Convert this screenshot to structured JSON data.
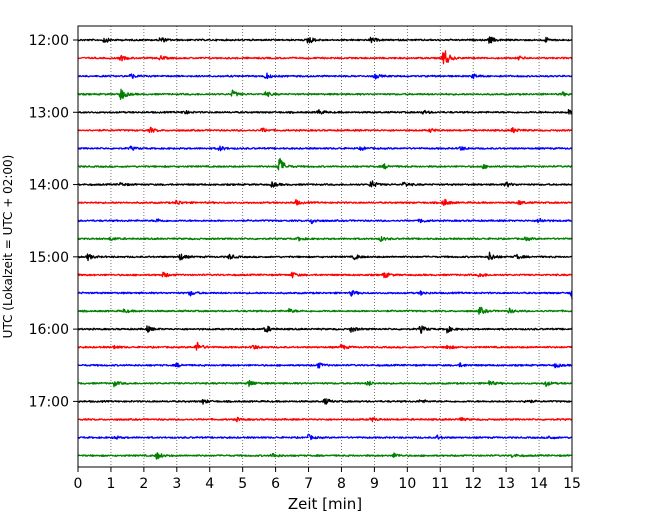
{
  "chart_data": {
    "type": "line",
    "title": "",
    "xlabel": "Zeit  [min]",
    "ylabel": "UTC (Lokalzeit = UTC + 02:00)",
    "xlim": [
      0,
      15
    ],
    "x_ticks": [
      "0",
      "1",
      "2",
      "3",
      "4",
      "5",
      "6",
      "7",
      "8",
      "9",
      "10",
      "11",
      "12",
      "13",
      "14",
      "15"
    ],
    "y_tick_labels": [
      "12:00",
      "13:00",
      "14:00",
      "15:00",
      "16:00",
      "17:00"
    ],
    "trace_interval_minutes": 15,
    "trace_colors": [
      "#000000",
      "#ff0000",
      "#0000ff",
      "#008000"
    ],
    "grid": "vertical dotted at each minute",
    "traces": [
      {
        "start": "12:00",
        "color": "#000000",
        "events": [
          {
            "x": 0.8,
            "a": 0.3
          },
          {
            "x": 2.5,
            "a": 0.35
          },
          {
            "x": 7.0,
            "a": 0.5
          },
          {
            "x": 8.9,
            "a": 0.3
          },
          {
            "x": 12.5,
            "a": 0.4
          },
          {
            "x": 14.2,
            "a": 0.25
          }
        ]
      },
      {
        "start": "12:15",
        "color": "#ff0000",
        "events": [
          {
            "x": 1.3,
            "a": 0.3
          },
          {
            "x": 2.5,
            "a": 0.25
          },
          {
            "x": 11.1,
            "a": 1.3
          },
          {
            "x": 13.4,
            "a": 0.2
          }
        ]
      },
      {
        "start": "12:30",
        "color": "#0000ff",
        "events": [
          {
            "x": 1.6,
            "a": 0.3
          },
          {
            "x": 5.7,
            "a": 0.35
          },
          {
            "x": 9.0,
            "a": 0.3
          },
          {
            "x": 12.0,
            "a": 0.25
          }
        ]
      },
      {
        "start": "12:45",
        "color": "#008000",
        "events": [
          {
            "x": 1.3,
            "a": 0.7
          },
          {
            "x": 4.7,
            "a": 0.4
          },
          {
            "x": 5.7,
            "a": 0.3
          },
          {
            "x": 14.7,
            "a": 0.2
          }
        ]
      },
      {
        "start": "13:00",
        "color": "#000000",
        "events": [
          {
            "x": 3.2,
            "a": 0.25
          },
          {
            "x": 7.3,
            "a": 0.3
          },
          {
            "x": 10.5,
            "a": 0.2
          },
          {
            "x": 14.9,
            "a": 0.25
          }
        ]
      },
      {
        "start": "13:15",
        "color": "#ff0000",
        "events": [
          {
            "x": 2.2,
            "a": 0.3
          },
          {
            "x": 5.6,
            "a": 0.25
          },
          {
            "x": 10.7,
            "a": 0.2
          },
          {
            "x": 13.2,
            "a": 0.3
          }
        ]
      },
      {
        "start": "13:30",
        "color": "#0000ff",
        "events": [
          {
            "x": 1.6,
            "a": 0.2
          },
          {
            "x": 4.3,
            "a": 0.3
          },
          {
            "x": 8.6,
            "a": 0.2
          },
          {
            "x": 11.6,
            "a": 0.25
          }
        ]
      },
      {
        "start": "13:45",
        "color": "#008000",
        "events": [
          {
            "x": 6.1,
            "a": 1.2
          },
          {
            "x": 9.3,
            "a": 0.25
          },
          {
            "x": 12.3,
            "a": 0.2
          }
        ]
      },
      {
        "start": "14:00",
        "color": "#000000",
        "events": [
          {
            "x": 1.3,
            "a": 0.2
          },
          {
            "x": 5.9,
            "a": 0.3
          },
          {
            "x": 8.9,
            "a": 0.5
          },
          {
            "x": 9.9,
            "a": 0.3
          },
          {
            "x": 13.0,
            "a": 0.3
          }
        ]
      },
      {
        "start": "14:15",
        "color": "#ff0000",
        "events": [
          {
            "x": 3.0,
            "a": 0.3
          },
          {
            "x": 6.6,
            "a": 0.3
          },
          {
            "x": 11.1,
            "a": 0.45
          },
          {
            "x": 13.4,
            "a": 0.25
          }
        ]
      },
      {
        "start": "14:30",
        "color": "#0000ff",
        "events": [
          {
            "x": 2.4,
            "a": 0.2
          },
          {
            "x": 7.1,
            "a": 0.3
          },
          {
            "x": 10.4,
            "a": 0.25
          },
          {
            "x": 14.0,
            "a": 0.3
          }
        ]
      },
      {
        "start": "14:45",
        "color": "#008000",
        "events": [
          {
            "x": 1.0,
            "a": 0.2
          },
          {
            "x": 6.7,
            "a": 0.2
          },
          {
            "x": 9.2,
            "a": 0.25
          },
          {
            "x": 13.6,
            "a": 0.2
          }
        ]
      },
      {
        "start": "15:00",
        "color": "#000000",
        "events": [
          {
            "x": 0.3,
            "a": 0.35
          },
          {
            "x": 3.1,
            "a": 0.4
          },
          {
            "x": 4.6,
            "a": 0.3
          },
          {
            "x": 8.4,
            "a": 0.3
          },
          {
            "x": 12.5,
            "a": 0.5
          },
          {
            "x": 13.3,
            "a": 0.3
          }
        ]
      },
      {
        "start": "15:15",
        "color": "#ff0000",
        "events": [
          {
            "x": 2.6,
            "a": 0.3
          },
          {
            "x": 6.5,
            "a": 0.3
          },
          {
            "x": 9.3,
            "a": 0.35
          },
          {
            "x": 12.2,
            "a": 0.3
          }
        ]
      },
      {
        "start": "15:30",
        "color": "#0000ff",
        "events": [
          {
            "x": 3.4,
            "a": 0.3
          },
          {
            "x": 8.3,
            "a": 0.3
          },
          {
            "x": 10.4,
            "a": 0.2
          },
          {
            "x": 15.0,
            "a": 0.8
          }
        ]
      },
      {
        "start": "15:45",
        "color": "#008000",
        "events": [
          {
            "x": 1.4,
            "a": 0.2
          },
          {
            "x": 6.4,
            "a": 0.25
          },
          {
            "x": 12.2,
            "a": 0.45
          },
          {
            "x": 13.1,
            "a": 0.25
          }
        ]
      },
      {
        "start": "16:00",
        "color": "#000000",
        "events": [
          {
            "x": 2.1,
            "a": 0.35
          },
          {
            "x": 5.7,
            "a": 0.45
          },
          {
            "x": 8.3,
            "a": 0.35
          },
          {
            "x": 10.4,
            "a": 0.45
          },
          {
            "x": 11.2,
            "a": 0.4
          }
        ]
      },
      {
        "start": "16:15",
        "color": "#ff0000",
        "events": [
          {
            "x": 1.1,
            "a": 0.2
          },
          {
            "x": 3.6,
            "a": 0.6
          },
          {
            "x": 5.3,
            "a": 0.3
          },
          {
            "x": 8.0,
            "a": 0.3
          },
          {
            "x": 11.2,
            "a": 0.3
          }
        ]
      },
      {
        "start": "16:30",
        "color": "#0000ff",
        "events": [
          {
            "x": 3.0,
            "a": 0.2
          },
          {
            "x": 7.3,
            "a": 0.3
          },
          {
            "x": 11.6,
            "a": 0.2
          },
          {
            "x": 14.5,
            "a": 0.25
          }
        ]
      },
      {
        "start": "16:45",
        "color": "#008000",
        "events": [
          {
            "x": 1.1,
            "a": 0.3
          },
          {
            "x": 5.2,
            "a": 0.4
          },
          {
            "x": 8.8,
            "a": 0.3
          },
          {
            "x": 12.5,
            "a": 0.3
          },
          {
            "x": 14.2,
            "a": 0.3
          }
        ]
      },
      {
        "start": "17:00",
        "color": "#000000",
        "events": [
          {
            "x": 3.8,
            "a": 0.25
          },
          {
            "x": 7.5,
            "a": 0.35
          },
          {
            "x": 10.4,
            "a": 0.2
          },
          {
            "x": 13.6,
            "a": 0.25
          }
        ]
      },
      {
        "start": "17:15",
        "color": "#ff0000",
        "events": [
          {
            "x": 4.8,
            "a": 0.2
          },
          {
            "x": 8.9,
            "a": 0.25
          },
          {
            "x": 11.6,
            "a": 0.2
          }
        ]
      },
      {
        "start": "17:30",
        "color": "#0000ff",
        "events": [
          {
            "x": 1.1,
            "a": 0.2
          },
          {
            "x": 7.0,
            "a": 0.3
          },
          {
            "x": 10.9,
            "a": 0.25
          },
          {
            "x": 14.3,
            "a": 0.2
          }
        ]
      },
      {
        "start": "17:45",
        "color": "#008000",
        "events": [
          {
            "x": 2.4,
            "a": 0.4
          },
          {
            "x": 5.9,
            "a": 0.25
          },
          {
            "x": 9.6,
            "a": 0.25
          },
          {
            "x": 13.2,
            "a": 0.2
          }
        ]
      }
    ]
  }
}
